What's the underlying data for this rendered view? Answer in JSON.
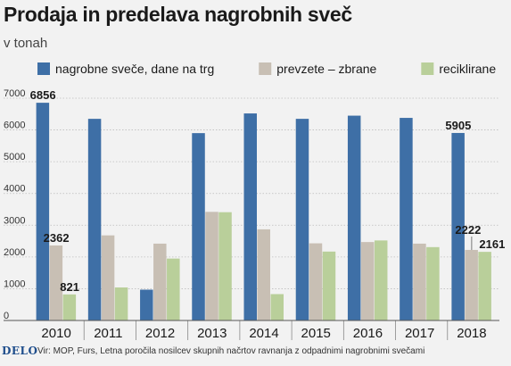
{
  "chart_data": {
    "type": "bar",
    "title": "Prodaja in predelava nagrobnih sveč",
    "subtitle": "v tonah",
    "categories": [
      "2010",
      "2011",
      "2012",
      "2013",
      "2014",
      "2015",
      "2016",
      "2017",
      "2018"
    ],
    "series": [
      {
        "name": "nagrobne sveče, dane na trg",
        "color": "#3e6fa6",
        "values": [
          6856,
          6350,
          970,
          5900,
          6520,
          6350,
          6450,
          6380,
          5905
        ]
      },
      {
        "name": "prevzete – zbrane",
        "color": "#c8bfb4",
        "values": [
          2362,
          2680,
          2420,
          3420,
          2870,
          2430,
          2470,
          2420,
          2222
        ]
      },
      {
        "name": "reciklirane",
        "color": "#b9cf9a",
        "values": [
          821,
          1040,
          1950,
          3410,
          830,
          2170,
          2520,
          2310,
          2161
        ]
      }
    ],
    "data_labels": [
      {
        "category": "2010",
        "series": 0,
        "text": "6856"
      },
      {
        "category": "2010",
        "series": 1,
        "text": "2362"
      },
      {
        "category": "2010",
        "series": 2,
        "text": "821"
      },
      {
        "category": "2018",
        "series": 0,
        "text": "5905"
      },
      {
        "category": "2018",
        "series": 1,
        "text": "2222"
      },
      {
        "category": "2018",
        "series": 2,
        "text": "2161"
      }
    ],
    "yticks": [
      "0",
      "1000",
      "2000",
      "3000",
      "4000",
      "5000",
      "6000",
      "7000"
    ],
    "ylim": [
      0,
      7000
    ],
    "grid": true,
    "legend": "top"
  },
  "footer": {
    "logo": "DELO",
    "source": "Vir: MOP, Furs, Letna poročila nosilcev skupnih načrtov ravnanja z odpadnimi nagrobnimi svečami"
  }
}
